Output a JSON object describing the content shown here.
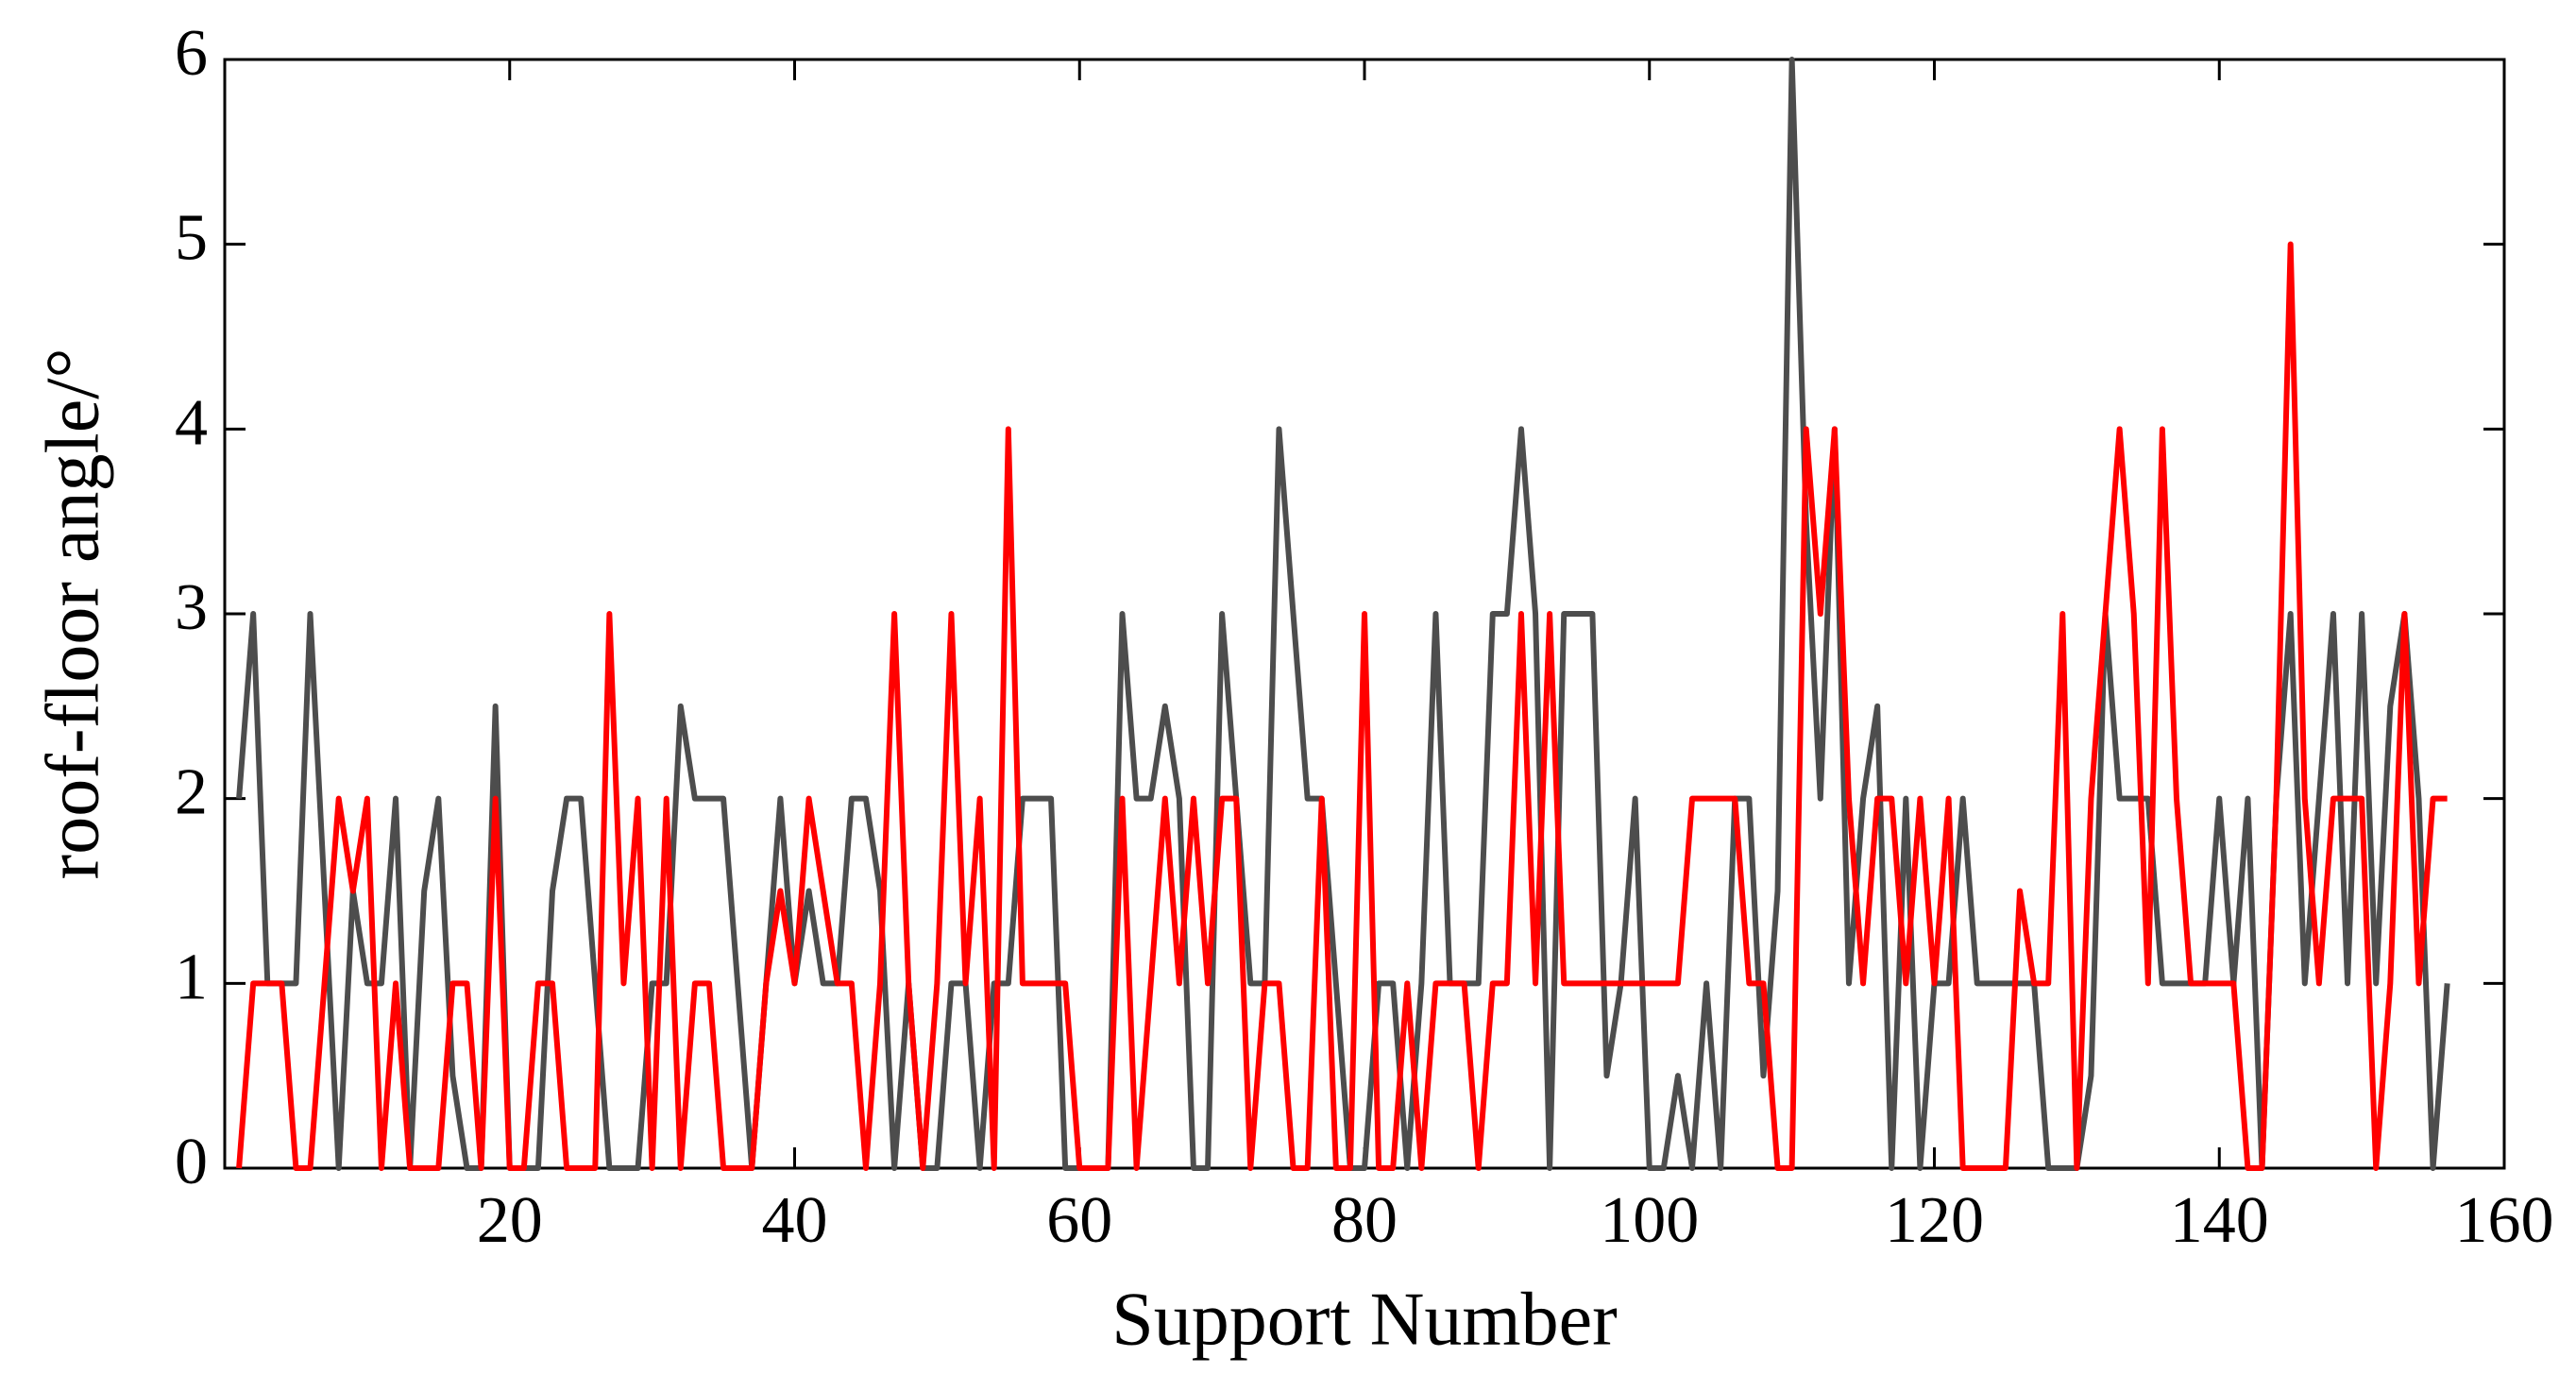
{
  "chart_data": {
    "type": "line",
    "x_label": "Support Number",
    "y_label": "roof-floor angle/°",
    "x": [
      1,
      2,
      3,
      4,
      5,
      6,
      7,
      8,
      9,
      10,
      11,
      12,
      13,
      14,
      15,
      16,
      17,
      18,
      19,
      20,
      21,
      22,
      23,
      24,
      25,
      26,
      27,
      28,
      29,
      30,
      31,
      32,
      33,
      34,
      35,
      36,
      37,
      38,
      39,
      40,
      41,
      42,
      43,
      44,
      45,
      46,
      47,
      48,
      49,
      50,
      51,
      52,
      53,
      54,
      55,
      56,
      57,
      58,
      59,
      60,
      61,
      62,
      63,
      64,
      65,
      66,
      67,
      68,
      69,
      70,
      71,
      72,
      73,
      74,
      75,
      76,
      77,
      78,
      79,
      80,
      81,
      82,
      83,
      84,
      85,
      86,
      87,
      88,
      89,
      90,
      91,
      92,
      93,
      94,
      95,
      96,
      97,
      98,
      99,
      100,
      101,
      102,
      103,
      104,
      105,
      106,
      107,
      108,
      109,
      110,
      111,
      112,
      113,
      114,
      115,
      116,
      117,
      118,
      119,
      120,
      121,
      122,
      123,
      124,
      125,
      126,
      127,
      128,
      129,
      130,
      131,
      132,
      133,
      134,
      135,
      136,
      137,
      138,
      139,
      140,
      141,
      142,
      143,
      144,
      145,
      146,
      147,
      148,
      149,
      150,
      151,
      152,
      153,
      154,
      155,
      156
    ],
    "series": [
      {
        "color": "#4d4d4d",
        "values": [
          2,
          3,
          1,
          1,
          1,
          3,
          1.5,
          0,
          1.5,
          1,
          1,
          2,
          0,
          1.5,
          2,
          0.5,
          0,
          0,
          2.5,
          0,
          0,
          0,
          1.5,
          2,
          2,
          1,
          0,
          0,
          0,
          1,
          1,
          2.5,
          2,
          2,
          2,
          1,
          0,
          1,
          2,
          1,
          1.5,
          1,
          1,
          2,
          2,
          1.5,
          0,
          1,
          0,
          0,
          1,
          1,
          0,
          1,
          1,
          2,
          2,
          2,
          0,
          0,
          0,
          0,
          3,
          2,
          2,
          2.5,
          2,
          0,
          0,
          3,
          2,
          1,
          1,
          4,
          3,
          2,
          2,
          1,
          0,
          0,
          1,
          1,
          0,
          1,
          3,
          1,
          1,
          1,
          3,
          3,
          4,
          3,
          0,
          3,
          3,
          3,
          0.5,
          1,
          2,
          0,
          0,
          0.5,
          0,
          1,
          0,
          2,
          2,
          0.5,
          1.5,
          6,
          3.5,
          2,
          4,
          1,
          2,
          2.5,
          0,
          2,
          0,
          1,
          1,
          2,
          1,
          1,
          1,
          1,
          1,
          0,
          0,
          0,
          0.5,
          3,
          2,
          2,
          2,
          1,
          1,
          1,
          1,
          2,
          1,
          2,
          0,
          2,
          3,
          1,
          2,
          3,
          1,
          3,
          1,
          2.5,
          3,
          2,
          0,
          1
        ]
      },
      {
        "color": "#ff0000",
        "values": [
          0,
          1,
          1,
          1,
          0,
          0,
          1,
          2,
          1.5,
          2,
          0,
          1,
          0,
          0,
          0,
          1,
          1,
          0,
          2,
          0,
          0,
          1,
          1,
          0,
          0,
          0,
          3,
          1,
          2,
          0,
          2,
          0,
          1,
          1,
          0,
          0,
          0,
          1,
          1.5,
          1,
          2,
          1.5,
          1,
          1,
          0,
          1,
          3,
          1,
          0,
          1,
          3,
          1,
          2,
          0,
          4,
          1,
          1,
          1,
          1,
          0,
          0,
          0,
          2,
          0,
          1,
          2,
          1,
          2,
          1,
          2,
          2,
          0,
          1,
          1,
          0,
          0,
          2,
          0,
          0,
          3,
          0,
          0,
          1,
          0,
          1,
          1,
          1,
          0,
          1,
          1,
          3,
          1,
          3,
          1,
          1,
          1,
          1,
          1,
          1,
          1,
          1,
          1,
          2,
          2,
          2,
          2,
          1,
          1,
          0,
          0,
          4,
          3,
          4,
          2,
          1,
          2,
          2,
          1,
          2,
          1,
          2,
          0,
          0,
          0,
          0,
          1.5,
          1,
          1,
          3,
          0,
          2,
          3,
          4,
          3,
          1,
          4,
          2,
          1,
          1,
          1,
          1,
          0,
          0,
          2,
          5,
          2,
          1,
          2,
          2,
          2,
          0,
          1,
          3,
          1,
          2,
          2
        ]
      }
    ],
    "xlim": [
      0,
      160
    ],
    "xticks": [
      20,
      40,
      60,
      80,
      100,
      120,
      140,
      160
    ],
    "ylim": [
      0,
      6
    ],
    "yticks": [
      0,
      1,
      2,
      3,
      4,
      5,
      6
    ]
  }
}
